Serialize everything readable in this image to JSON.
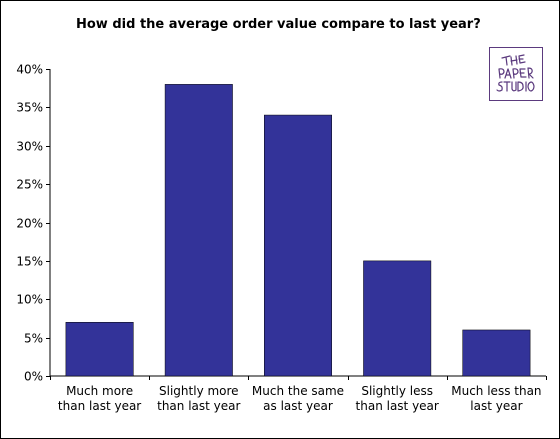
{
  "chart_data": {
    "type": "bar",
    "title": "How did the average order value compare to last year?",
    "categories": [
      [
        "Much more",
        "than last year"
      ],
      [
        "Slightly more",
        "than last year"
      ],
      [
        "Much the same",
        "as last year"
      ],
      [
        "Slightly less",
        "than last year"
      ],
      [
        "Much less than",
        "last year"
      ]
    ],
    "values": [
      7,
      38,
      34,
      15,
      6
    ],
    "ylim": [
      0,
      40
    ],
    "yticks": [
      0,
      5,
      10,
      15,
      20,
      25,
      30,
      35,
      40
    ],
    "ytick_suffix": "%",
    "bar_color": "#333399",
    "grid": false,
    "xlabel": "",
    "ylabel": ""
  },
  "logo": {
    "name": "the-paper-studio-logo",
    "color": "#5b3a7e"
  }
}
